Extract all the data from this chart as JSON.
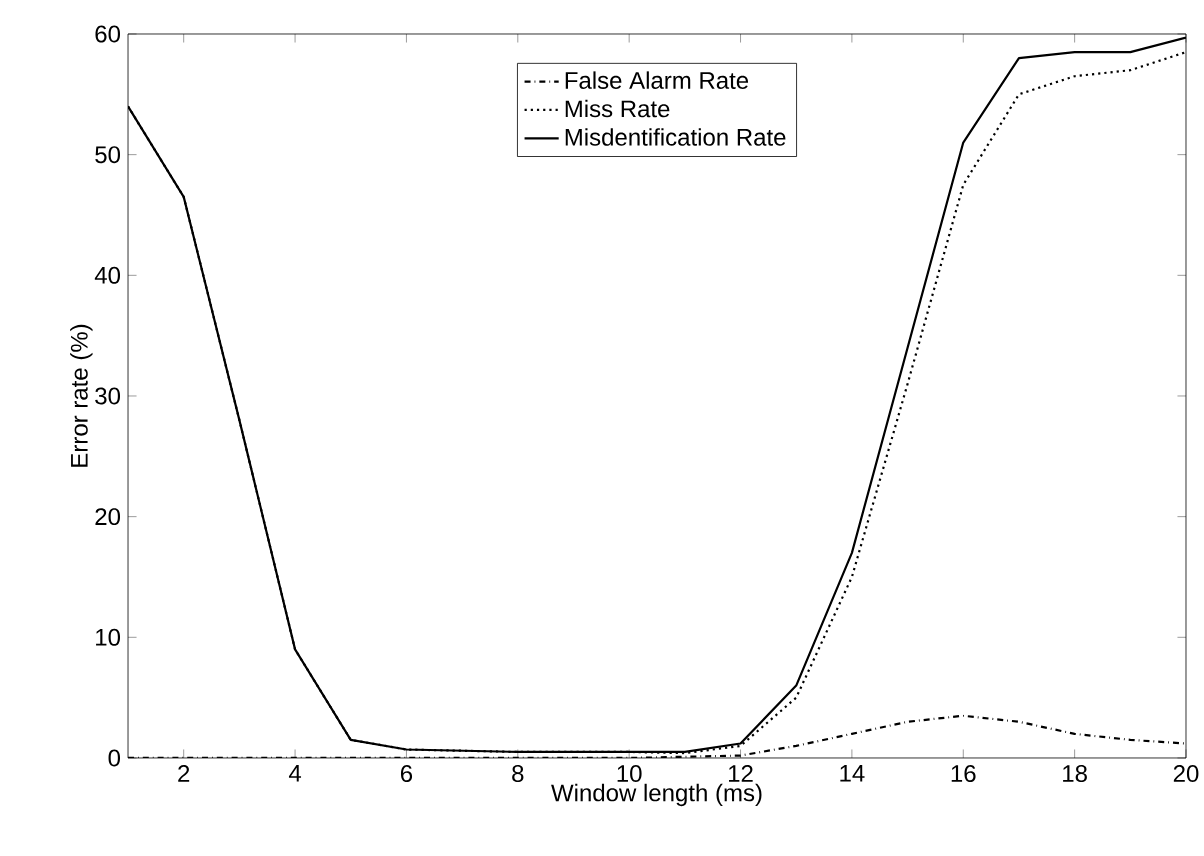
{
  "chart_data": {
    "type": "line",
    "xlabel": "Window length (ms)",
    "ylabel": "Error rate (%)",
    "x": [
      1,
      2,
      3,
      4,
      5,
      6,
      7,
      8,
      9,
      10,
      11,
      12,
      13,
      14,
      15,
      16,
      17,
      18,
      19,
      20
    ],
    "xlim": [
      1,
      20
    ],
    "ylim": [
      0,
      60
    ],
    "xticks": [
      2,
      4,
      6,
      8,
      10,
      12,
      14,
      16,
      18,
      20
    ],
    "yticks": [
      0,
      10,
      20,
      30,
      40,
      50,
      60
    ],
    "legend": "top",
    "grid": false,
    "marker": "none",
    "series": [
      {
        "name": "False Alarm Rate",
        "color": "#000000",
        "line_style": "dashdot",
        "values": [
          0,
          0,
          0,
          0,
          0,
          0,
          0,
          0,
          0,
          0,
          0.1,
          0.2,
          1,
          2,
          3,
          3.5,
          3,
          2,
          1.5,
          1.2
        ]
      },
      {
        "name": "Miss Rate",
        "color": "#000000",
        "line_style": "dotted",
        "values": [
          54,
          46.5,
          28,
          9,
          1.5,
          0.7,
          0.6,
          0.5,
          0.5,
          0.5,
          0.4,
          1,
          5,
          15,
          31,
          47.5,
          55,
          56.5,
          57,
          58.5
        ]
      },
      {
        "name": "Misdentification Rate",
        "color": "#000000",
        "line_style": "solid",
        "values": [
          54,
          46.5,
          28,
          9,
          1.5,
          0.7,
          0.6,
          0.5,
          0.5,
          0.5,
          0.5,
          1.2,
          6,
          17,
          34,
          51,
          58,
          58.5,
          58.5,
          59.7
        ]
      }
    ]
  }
}
